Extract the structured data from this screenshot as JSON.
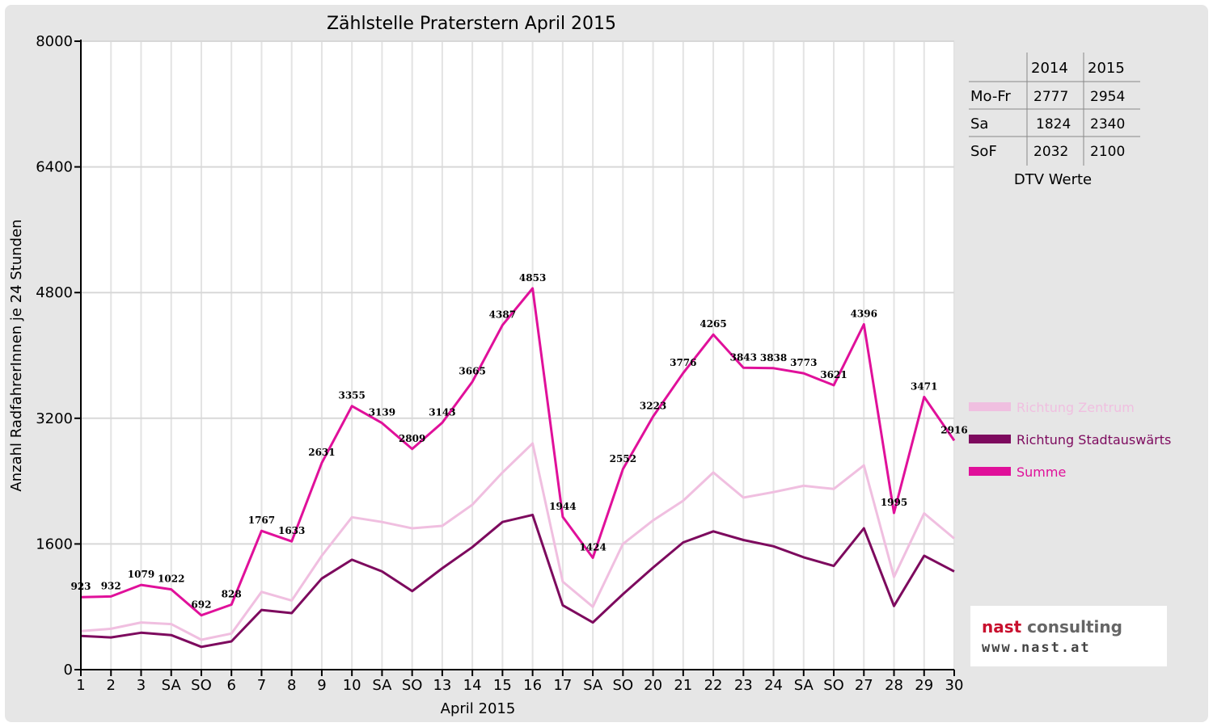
{
  "chart_data": {
    "type": "line",
    "title": "Zählstelle Praterstern April 2015",
    "ylabel": "Anzahl RadfahrerInnen je 24 Stunden",
    "xlabel": "April 2015",
    "ylim": [
      0,
      8000
    ],
    "yticks": [
      0,
      1600,
      3200,
      4800,
      6400,
      8000
    ],
    "grid": true,
    "legend_position": "right",
    "x_labels": [
      "1",
      "2",
      "3",
      "SA",
      "SO",
      "6",
      "7",
      "8",
      "9",
      "10",
      "SA",
      "SO",
      "13",
      "14",
      "15",
      "16",
      "17",
      "SA",
      "SO",
      "20",
      "21",
      "22",
      "23",
      "24",
      "SA",
      "SO",
      "27",
      "28",
      "29",
      "30"
    ],
    "red_labels": [
      "SO",
      "SO",
      "SO",
      "SO",
      "6"
    ],
    "series": [
      {
        "name": "Richtung Zentrum",
        "color": "#f0bfe0",
        "values": [
          490,
          520,
          600,
          580,
          380,
          460,
          990,
          880,
          1450,
          1940,
          1880,
          1800,
          1830,
          2100,
          2510,
          2880,
          1120,
          800,
          1600,
          1900,
          2150,
          2510,
          2190,
          2260,
          2340,
          2300,
          2600,
          1180,
          1990,
          1670
        ]
      },
      {
        "name": "Richtung Stadtauswärts",
        "color": "#7d0a5e",
        "values": [
          430,
          410,
          470,
          440,
          290,
          360,
          760,
          720,
          1160,
          1400,
          1250,
          1000,
          1290,
          1560,
          1880,
          1970,
          820,
          600,
          960,
          1300,
          1620,
          1760,
          1650,
          1570,
          1430,
          1320,
          1800,
          810,
          1450,
          1250
        ]
      },
      {
        "name": "Summe",
        "color": "#e0109a",
        "values": [
          923,
          932,
          1079,
          1022,
          692,
          828,
          1767,
          1633,
          2631,
          3355,
          3139,
          2809,
          3143,
          3665,
          4387,
          4853,
          1944,
          1424,
          2552,
          3223,
          3776,
          4265,
          3843,
          3838,
          3773,
          3621,
          4396,
          1995,
          3471,
          2916
        ]
      }
    ],
    "data_labels": [
      "923",
      "932",
      "1079",
      "1022",
      "692",
      "828",
      "1767",
      "1633",
      "2631",
      "3355",
      "3139",
      "2809",
      "3143",
      "3665",
      "4387",
      "4853",
      "1944",
      "1424",
      "2552",
      "3223",
      "3776",
      "4265",
      "3843",
      "3838",
      "3773",
      "3621",
      "4396",
      "1995",
      "3471",
      "2916"
    ]
  },
  "dtv_table": {
    "headers": [
      "",
      "2014",
      "2015"
    ],
    "rows": [
      {
        "label": "Mo-Fr",
        "y2014": "2777",
        "y2015": "2954"
      },
      {
        "label": "Sa",
        "y2014": "1824",
        "y2015": "2340"
      },
      {
        "label": "SoF",
        "y2014": "2032",
        "y2015": "2100"
      }
    ],
    "caption": "DTV Werte"
  },
  "logo": {
    "brand_part1": "nast",
    "brand_part2": " consulting",
    "url": "www.nast.at"
  }
}
